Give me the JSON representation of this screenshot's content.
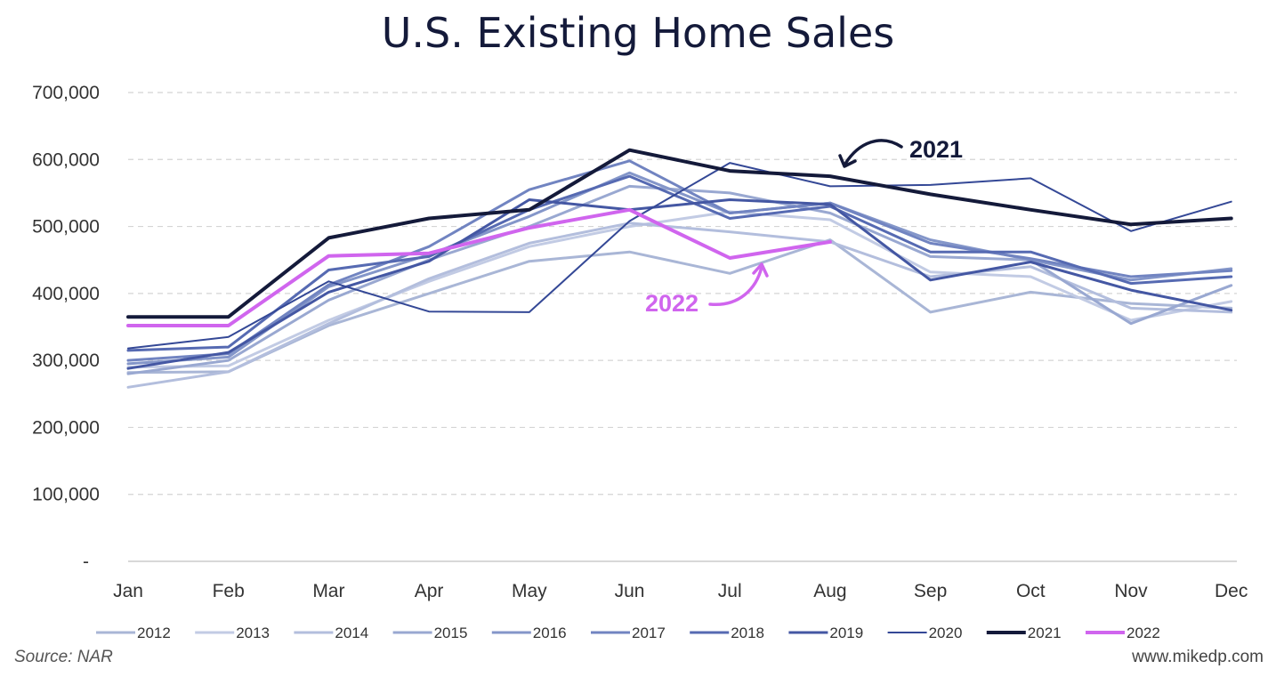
{
  "title": "U.S. Existing Home Sales",
  "source": "Source: NAR",
  "website": "www.mikedp.com",
  "chart_data": {
    "type": "line",
    "title": "U.S. Existing Home Sales",
    "xlabel": "",
    "ylabel": "",
    "categories": [
      "Jan",
      "Feb",
      "Mar",
      "Apr",
      "May",
      "Jun",
      "Jul",
      "Aug",
      "Sep",
      "Oct",
      "Nov",
      "Dec"
    ],
    "ylim": [
      0,
      700000
    ],
    "yticks": [
      0,
      100000,
      200000,
      300000,
      400000,
      500000,
      600000,
      700000
    ],
    "ytick_labels": [
      "-",
      "100,000",
      "200,000",
      "300,000",
      "400,000",
      "500,000",
      "600,000",
      "700,000"
    ],
    "grid": true,
    "legend_position": "bottom",
    "series": [
      {
        "name": "2012",
        "color": "#a9b6d6",
        "width": 3,
        "values": [
          282000,
          283000,
          352000,
          400000,
          448000,
          462000,
          430000,
          480000,
          372000,
          402000,
          385000,
          378000
        ]
      },
      {
        "name": "2013",
        "color": "#c2cbe4",
        "width": 3,
        "values": [
          290000,
          292000,
          360000,
          418000,
          470000,
          500000,
          522000,
          510000,
          432000,
          425000,
          360000,
          388000
        ]
      },
      {
        "name": "2014",
        "color": "#b3bedd",
        "width": 3,
        "values": [
          260000,
          283000,
          355000,
          422000,
          475000,
          505000,
          492000,
          477000,
          425000,
          440000,
          378000,
          372000
        ]
      },
      {
        "name": "2015",
        "color": "#99a8d1",
        "width": 3,
        "values": [
          280000,
          300000,
          390000,
          450000,
          500000,
          560000,
          550000,
          520000,
          455000,
          450000,
          355000,
          412000
        ]
      },
      {
        "name": "2016",
        "color": "#8496c9",
        "width": 3,
        "values": [
          295000,
          305000,
          410000,
          458000,
          515000,
          580000,
          520000,
          535000,
          480000,
          450000,
          420000,
          437000
        ]
      },
      {
        "name": "2017",
        "color": "#7184c1",
        "width": 3,
        "values": [
          300000,
          310000,
          413000,
          470000,
          555000,
          598000,
          520000,
          535000,
          475000,
          452000,
          425000,
          434000
        ]
      },
      {
        "name": "2018",
        "color": "#566ab2",
        "width": 3,
        "values": [
          315000,
          320000,
          435000,
          455000,
          525000,
          575000,
          512000,
          530000,
          462000,
          462000,
          415000,
          425000
        ]
      },
      {
        "name": "2019",
        "color": "#4457a3",
        "width": 3,
        "values": [
          288000,
          312000,
          402000,
          448000,
          540000,
          525000,
          540000,
          533000,
          420000,
          447000,
          405000,
          375000
        ]
      },
      {
        "name": "2020",
        "color": "#344896",
        "width": 2,
        "values": [
          318000,
          335000,
          418000,
          373000,
          372000,
          508000,
          595000,
          560000,
          562000,
          572000,
          493000,
          537000
        ]
      },
      {
        "name": "2021",
        "color": "#141a3a",
        "width": 4,
        "values": [
          365000,
          365000,
          483000,
          512000,
          525000,
          614000,
          583000,
          575000,
          548000,
          525000,
          503000,
          512000
        ]
      },
      {
        "name": "2022",
        "color": "#d065ee",
        "width": 4,
        "values": [
          352000,
          352000,
          456000,
          460000,
          498000,
          525000,
          453000,
          477000,
          null,
          null,
          null,
          null
        ]
      }
    ],
    "annotations": [
      {
        "text": "2021",
        "color": "#141a3a"
      },
      {
        "text": "2022",
        "color": "#d065ee"
      }
    ]
  }
}
